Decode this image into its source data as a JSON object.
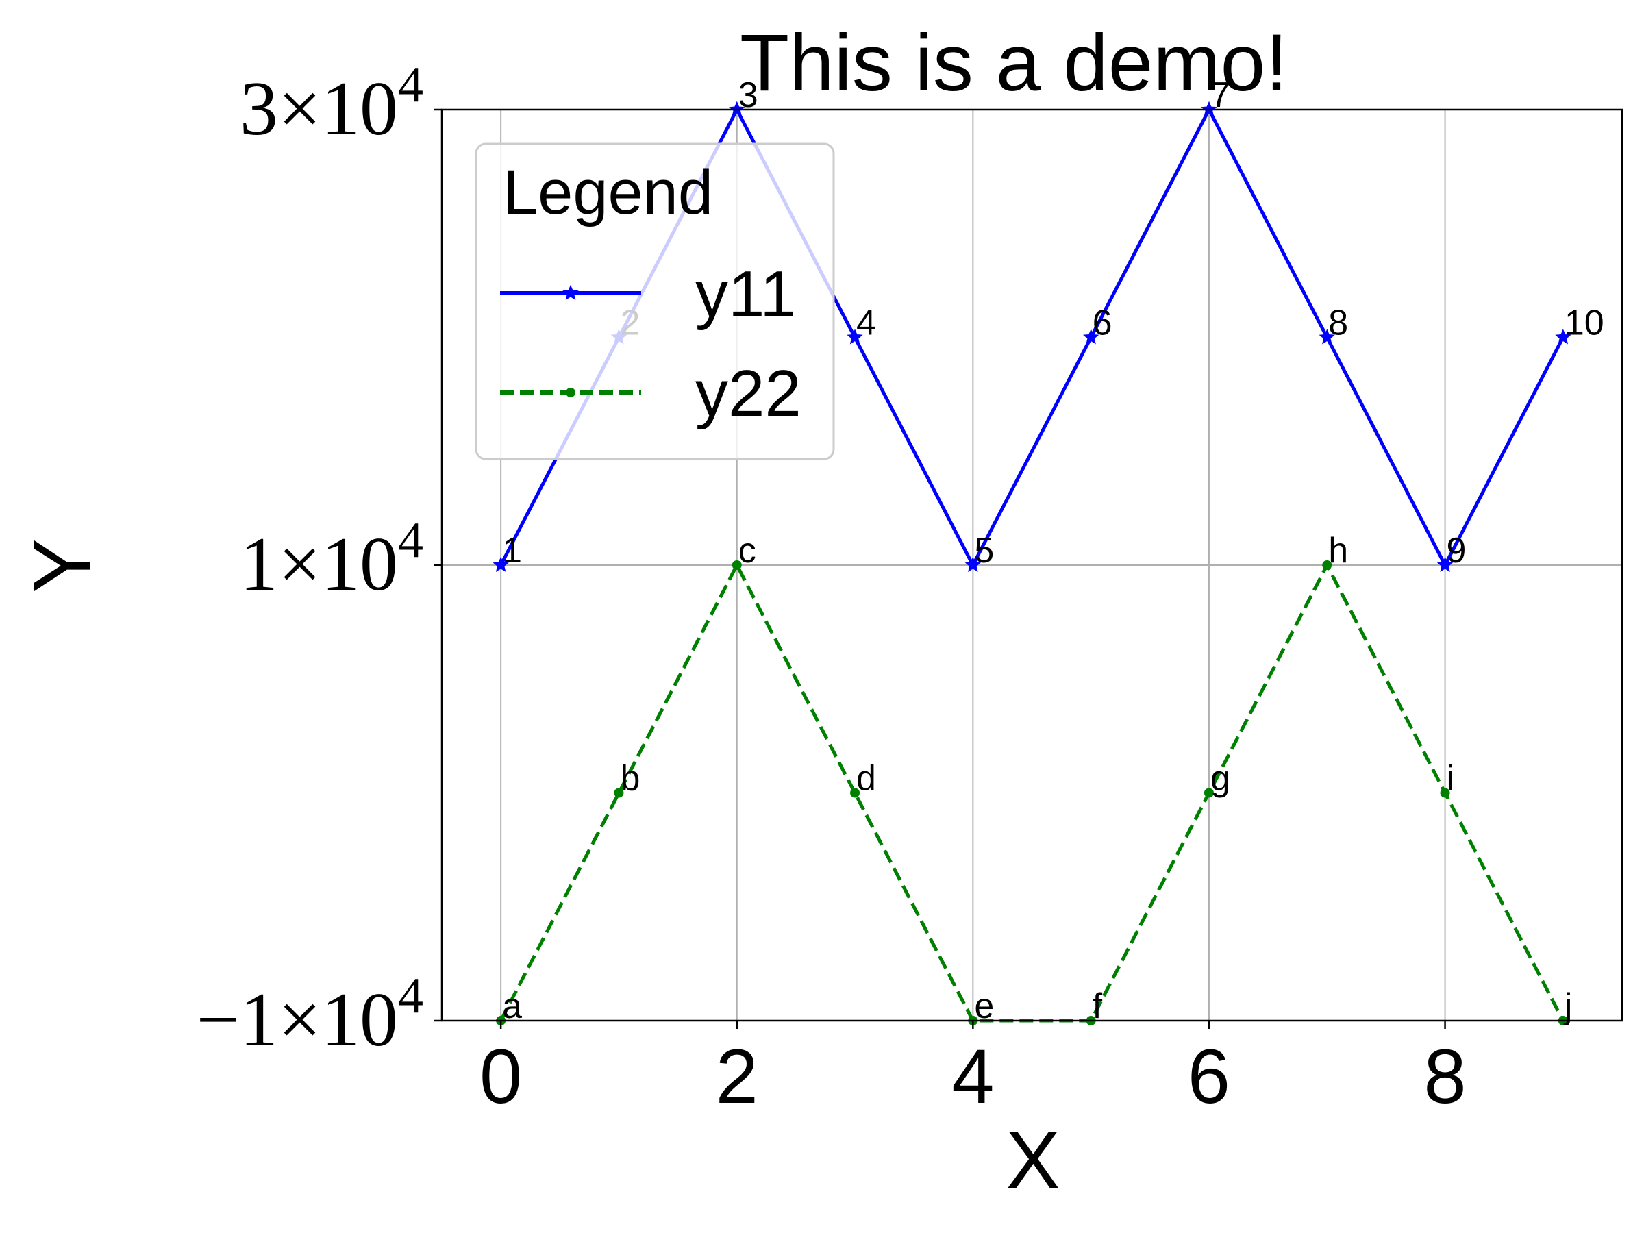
{
  "chart_data": {
    "type": "line",
    "title": "This is a demo!",
    "xlabel": "X",
    "ylabel": "Y",
    "x": [
      0,
      1,
      2,
      3,
      4,
      5,
      6,
      7,
      8,
      9
    ],
    "xlim": [
      -0.5,
      9.5
    ],
    "ylim": [
      -10000,
      30000
    ],
    "xticks": [
      0,
      2,
      4,
      6,
      8
    ],
    "xtick_labels": [
      "0",
      "2",
      "4",
      "6",
      "8"
    ],
    "yticks": [
      {
        "value": -10000,
        "mantissa": "−1",
        "times": "×",
        "base": "10",
        "exp": "4"
      },
      {
        "value": 10000,
        "mantissa": "1",
        "times": "×",
        "base": "10",
        "exp": "4"
      },
      {
        "value": 30000,
        "mantissa": "3",
        "times": "×",
        "base": "10",
        "exp": "4"
      }
    ],
    "grid": true,
    "legend": {
      "title": "Legend",
      "placement": "upper-left"
    },
    "series": [
      {
        "name": "y11",
        "values": [
          10000,
          20000,
          30000,
          20000,
          10000,
          20000,
          30000,
          20000,
          10000,
          20000
        ],
        "labels": [
          "1",
          "2",
          "3",
          "4",
          "5",
          "6",
          "7",
          "8",
          "9",
          "10"
        ],
        "color": "#0000ff",
        "linestyle": "solid",
        "marker": "star"
      },
      {
        "name": "y22",
        "values": [
          -10000,
          0,
          10000,
          0,
          -10000,
          -10000,
          0,
          10000,
          0,
          -10000
        ],
        "labels": [
          "a",
          "b",
          "c",
          "d",
          "e",
          "f",
          "g",
          "h",
          "i",
          "j"
        ],
        "color": "#008000",
        "linestyle": "dashed",
        "marker": "dot"
      }
    ]
  }
}
